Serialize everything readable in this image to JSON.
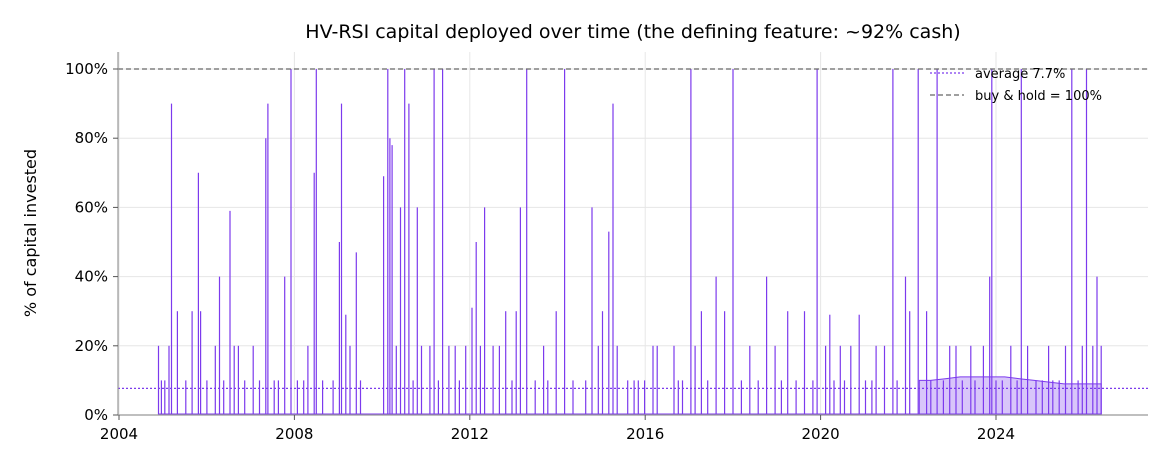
{
  "chart_data": {
    "type": "area",
    "title": "HV-RSI capital deployed over time (the defining feature: ~92% cash)",
    "xlabel": "",
    "ylabel": "% of capital invested",
    "x_ticks": [
      "2004",
      "2008",
      "2012",
      "2016",
      "2020",
      "2024"
    ],
    "y_ticks": [
      "0%",
      "20%",
      "40%",
      "60%",
      "80%",
      "100%"
    ],
    "xlim": [
      2004.0,
      2027.4
    ],
    "ylim": [
      0,
      105
    ],
    "grid": true,
    "legend_position": "top-right",
    "colors": {
      "series": "#7c3aed",
      "fill": "#d8c5fa",
      "average": "#7c3aed",
      "buy_hold": "#666666"
    },
    "legend": [
      {
        "label": "average 7.7%",
        "style": "dotted",
        "color": "#7c3aed"
      },
      {
        "label": "buy & hold = 100%",
        "style": "dashed",
        "color": "#666666"
      }
    ],
    "average": 7.7,
    "buy_hold": 100,
    "series": [
      {
        "spikes": [
          [
            2005.05,
            20
          ],
          [
            2005.12,
            10
          ],
          [
            2005.2,
            10
          ],
          [
            2005.3,
            20
          ],
          [
            2005.36,
            90
          ],
          [
            2005.5,
            30
          ],
          [
            2005.7,
            10
          ],
          [
            2005.85,
            30
          ],
          [
            2006.0,
            70
          ],
          [
            2006.05,
            30
          ],
          [
            2006.2,
            10
          ],
          [
            2006.4,
            20
          ],
          [
            2006.5,
            40
          ],
          [
            2006.6,
            10
          ],
          [
            2006.75,
            59
          ],
          [
            2006.85,
            20
          ],
          [
            2006.95,
            20
          ],
          [
            2007.1,
            10
          ],
          [
            2007.3,
            20
          ],
          [
            2007.45,
            10
          ],
          [
            2007.6,
            80
          ],
          [
            2007.65,
            90
          ],
          [
            2007.8,
            10
          ],
          [
            2007.9,
            10
          ],
          [
            2008.05,
            40
          ],
          [
            2008.2,
            100
          ],
          [
            2008.35,
            10
          ],
          [
            2008.5,
            10
          ],
          [
            2008.6,
            20
          ],
          [
            2008.75,
            70
          ],
          [
            2008.8,
            100
          ],
          [
            2008.95,
            10
          ],
          [
            2009.2,
            10
          ],
          [
            2009.35,
            50
          ],
          [
            2009.4,
            90
          ],
          [
            2009.5,
            29
          ],
          [
            2009.6,
            20
          ],
          [
            2009.75,
            47
          ],
          [
            2009.85,
            10
          ],
          [
            2010.4,
            69
          ],
          [
            2010.5,
            100
          ],
          [
            2010.55,
            80
          ],
          [
            2010.6,
            78
          ],
          [
            2010.7,
            20
          ],
          [
            2010.8,
            60
          ],
          [
            2010.9,
            100
          ],
          [
            2011.0,
            90
          ],
          [
            2011.1,
            10
          ],
          [
            2011.2,
            60
          ],
          [
            2011.3,
            20
          ],
          [
            2011.5,
            20
          ],
          [
            2011.6,
            100
          ],
          [
            2011.7,
            10
          ],
          [
            2011.8,
            100
          ],
          [
            2011.95,
            20
          ],
          [
            2012.1,
            20
          ],
          [
            2012.2,
            10
          ],
          [
            2012.35,
            20
          ],
          [
            2012.5,
            31
          ],
          [
            2012.6,
            50
          ],
          [
            2012.7,
            20
          ],
          [
            2012.8,
            60
          ],
          [
            2013.0,
            20
          ],
          [
            2013.15,
            20
          ],
          [
            2013.3,
            30
          ],
          [
            2013.45,
            10
          ],
          [
            2013.55,
            30
          ],
          [
            2013.65,
            60
          ],
          [
            2013.8,
            100
          ],
          [
            2014.0,
            10
          ],
          [
            2014.2,
            20
          ],
          [
            2014.3,
            10
          ],
          [
            2014.5,
            30
          ],
          [
            2014.7,
            100
          ],
          [
            2014.9,
            10
          ],
          [
            2015.2,
            10
          ],
          [
            2015.35,
            60
          ],
          [
            2015.5,
            20
          ],
          [
            2015.6,
            30
          ],
          [
            2015.75,
            53
          ],
          [
            2015.85,
            90
          ],
          [
            2015.95,
            20
          ],
          [
            2016.2,
            10
          ],
          [
            2016.35,
            10
          ],
          [
            2016.45,
            10
          ],
          [
            2016.6,
            10
          ],
          [
            2016.8,
            20
          ],
          [
            2016.9,
            20
          ],
          [
            2017.3,
            20
          ],
          [
            2017.4,
            10
          ],
          [
            2017.5,
            10
          ],
          [
            2017.7,
            100
          ],
          [
            2017.8,
            20
          ],
          [
            2017.95,
            30
          ],
          [
            2018.1,
            10
          ],
          [
            2018.3,
            40
          ],
          [
            2018.5,
            30
          ],
          [
            2018.7,
            100
          ],
          [
            2018.9,
            10
          ],
          [
            2019.1,
            20
          ],
          [
            2019.3,
            10
          ],
          [
            2019.5,
            40
          ],
          [
            2019.7,
            20
          ],
          [
            2019.85,
            10
          ],
          [
            2020.0,
            30
          ],
          [
            2020.2,
            10
          ],
          [
            2020.4,
            30
          ],
          [
            2020.6,
            10
          ],
          [
            2020.7,
            100
          ],
          [
            2020.9,
            20
          ],
          [
            2021.0,
            29
          ],
          [
            2021.1,
            10
          ],
          [
            2021.25,
            20
          ],
          [
            2021.35,
            10
          ],
          [
            2021.5,
            20
          ],
          [
            2021.7,
            29
          ],
          [
            2021.85,
            10
          ],
          [
            2022.0,
            10
          ],
          [
            2022.1,
            20
          ],
          [
            2022.3,
            20
          ],
          [
            2022.5,
            100
          ],
          [
            2022.6,
            10
          ],
          [
            2022.8,
            40
          ],
          [
            2022.9,
            30
          ],
          [
            2023.1,
            100
          ],
          [
            2023.3,
            30
          ],
          [
            2023.4,
            10
          ],
          [
            2023.55,
            100
          ],
          [
            2023.7,
            10
          ],
          [
            2023.85,
            20
          ],
          [
            2024.0,
            20
          ],
          [
            2024.15,
            10
          ],
          [
            2024.35,
            20
          ],
          [
            2024.45,
            10
          ],
          [
            2024.65,
            20
          ],
          [
            2024.8,
            40
          ],
          [
            2024.85,
            100
          ],
          [
            2024.95,
            10
          ],
          [
            2025.1,
            10
          ],
          [
            2025.3,
            20
          ],
          [
            2025.45,
            10
          ],
          [
            2025.55,
            100
          ],
          [
            2025.7,
            20
          ],
          [
            2025.9,
            10
          ],
          [
            2026.05,
            10
          ],
          [
            2026.2,
            20
          ],
          [
            2026.3,
            10
          ],
          [
            2026.45,
            10
          ],
          [
            2026.6,
            20
          ],
          [
            2026.75,
            100
          ],
          [
            2026.9,
            10
          ],
          [
            2027.0,
            20
          ],
          [
            2027.1,
            100
          ],
          [
            2027.25,
            20
          ],
          [
            2027.35,
            40
          ],
          [
            2027.45,
            20
          ]
        ]
      }
    ],
    "fill_region": {
      "points": [
        [
          2025.55,
          0
        ],
        [
          2025.55,
          10
        ],
        [
          2025.7,
          10
        ],
        [
          2025.9,
          10.5
        ],
        [
          2026.1,
          11
        ],
        [
          2026.3,
          11
        ],
        [
          2026.5,
          11
        ],
        [
          2026.7,
          11
        ],
        [
          2026.9,
          10.5
        ],
        [
          2027.1,
          10
        ],
        [
          2027.3,
          9.5
        ],
        [
          2027.5,
          9
        ],
        [
          2027.7,
          9
        ],
        [
          2027.9,
          9
        ],
        [
          2028.0,
          9
        ],
        [
          2028.0,
          0
        ]
      ]
    }
  }
}
